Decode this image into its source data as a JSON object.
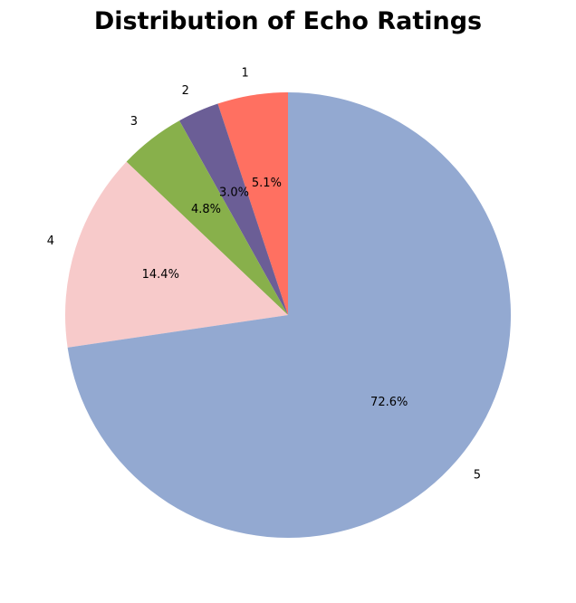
{
  "chart_data": {
    "type": "pie",
    "title": "Distribution of Echo Ratings",
    "categories": [
      "1",
      "2",
      "3",
      "4",
      "5"
    ],
    "values": [
      5.1,
      3.0,
      4.8,
      14.4,
      72.6
    ],
    "percent_labels": [
      "5.1%",
      "3.0%",
      "4.8%",
      "14.4%",
      "72.6%"
    ],
    "colors": [
      "#ff7061",
      "#6b5e96",
      "#88b04b",
      "#f7caca",
      "#93a9d1"
    ],
    "start_angle_deg": 90,
    "direction": "counterclockwise",
    "legend": "none"
  }
}
